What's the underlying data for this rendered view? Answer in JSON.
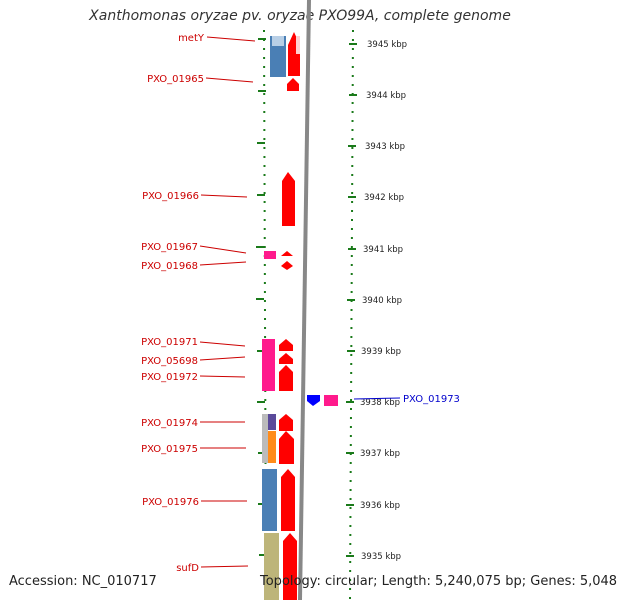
{
  "title": "Xanthomonas oryzae pv. oryzae PXO99A, complete genome",
  "footer": {
    "accession": "Accession: NC_010717",
    "summary": "Topology: circular; Length: 5,240,075 bp; Genes: 5,048"
  },
  "ruler": {
    "unit": "kbp",
    "ticks": [
      "3945 kbp",
      "3944 kbp",
      "3943 kbp",
      "3942 kbp",
      "3941 kbp",
      "3940 kbp",
      "3939 kbp",
      "3938 kbp",
      "3937 kbp",
      "3936 kbp",
      "3935 kbp"
    ]
  },
  "genes": [
    {
      "name": "metY",
      "color": "#cc0000"
    },
    {
      "name": "PXO_01965",
      "color": "#cc0000"
    },
    {
      "name": "PXO_01966",
      "color": "#cc0000"
    },
    {
      "name": "PXO_01967",
      "color": "#cc0000"
    },
    {
      "name": "PXO_01968",
      "color": "#cc0000"
    },
    {
      "name": "PXO_01971",
      "color": "#cc0000"
    },
    {
      "name": "PXO_05698",
      "color": "#cc0000"
    },
    {
      "name": "PXO_01972",
      "color": "#cc0000"
    },
    {
      "name": "PXO_01973",
      "color": "#0000cc"
    },
    {
      "name": "PXO_01974",
      "color": "#cc0000"
    },
    {
      "name": "PXO_01975",
      "color": "#cc0000"
    },
    {
      "name": "PXO_01976",
      "color": "#cc0000"
    },
    {
      "name": "sufD",
      "color": "#cc0000"
    }
  ],
  "colors": {
    "forward_gene": "#ff0000",
    "reverse_gene": "#0000ff",
    "tick_green": "#1a7a1a",
    "backbone": "#888888"
  }
}
